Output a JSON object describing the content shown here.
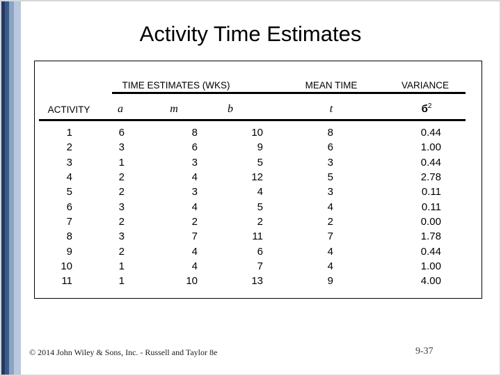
{
  "slide": {
    "title": "Activity Time Estimates",
    "footer": {
      "copyright": "© 2014 John Wiley & Sons, Inc. - Russell and Taylor 8e",
      "page_number": "9-37"
    },
    "colors": {
      "stripe_dark": "#24395c",
      "stripe_medium": "#3a5a8a",
      "stripe_light": "#8ca3c4",
      "stripe_lighter": "#b8c7df",
      "rule_color": "#000000",
      "frame_border": "#d7d7d7"
    }
  },
  "table": {
    "group_headers": {
      "time_estimates": "TIME ESTIMATES (WKS)",
      "mean_time": "MEAN TIME",
      "variance": "VARIANCE"
    },
    "column_headers": {
      "activity": "ACTIVITY",
      "a": "a",
      "m": "m",
      "b": "b",
      "t": "t",
      "variance_symbol": "б",
      "variance_exponent": "2"
    },
    "rows": [
      {
        "activity": "1",
        "a": "6",
        "m": "8",
        "b": "10",
        "t": "8",
        "variance": "0.44"
      },
      {
        "activity": "2",
        "a": "3",
        "m": "6",
        "b": "9",
        "t": "6",
        "variance": "1.00"
      },
      {
        "activity": "3",
        "a": "1",
        "m": "3",
        "b": "5",
        "t": "3",
        "variance": "0.44"
      },
      {
        "activity": "4",
        "a": "2",
        "m": "4",
        "b": "12",
        "t": "5",
        "variance": "2.78"
      },
      {
        "activity": "5",
        "a": "2",
        "m": "3",
        "b": "4",
        "t": "3",
        "variance": "0.11"
      },
      {
        "activity": "6",
        "a": "3",
        "m": "4",
        "b": "5",
        "t": "4",
        "variance": "0.11"
      },
      {
        "activity": "7",
        "a": "2",
        "m": "2",
        "b": "2",
        "t": "2",
        "variance": "0.00"
      },
      {
        "activity": "8",
        "a": "3",
        "m": "7",
        "b": "11",
        "t": "7",
        "variance": "1.78"
      },
      {
        "activity": "9",
        "a": "2",
        "m": "4",
        "b": "6",
        "t": "4",
        "variance": "0.44"
      },
      {
        "activity": "10",
        "a": "1",
        "m": "4",
        "b": "7",
        "t": "4",
        "variance": "1.00"
      },
      {
        "activity": "11",
        "a": "1",
        "m": "10",
        "b": "13",
        "t": "9",
        "variance": "4.00"
      }
    ]
  }
}
